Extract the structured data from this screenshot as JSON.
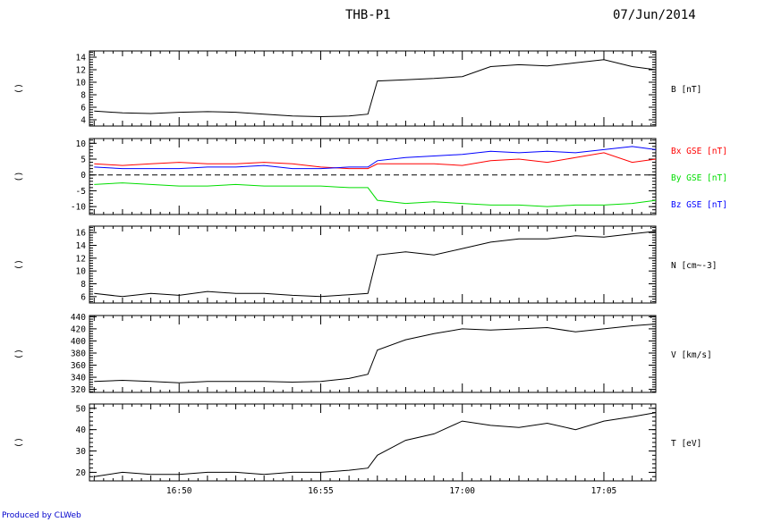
{
  "header": {
    "title": "THB-P1",
    "date": "07/Jun/2014"
  },
  "footer": {
    "credit": "Produced by CLWeb"
  },
  "chart_data": [
    {
      "type": "line",
      "panel_label": "()",
      "ylim": [
        3,
        15
      ],
      "yticks": [
        4,
        6,
        8,
        10,
        12,
        14
      ],
      "xlim": [
        "16:46:50",
        "17:06:50"
      ],
      "x_tick_labels": [
        "16:50",
        "16:55",
        "17:00",
        "17:05"
      ],
      "x": [
        "16:47",
        "16:48",
        "16:49",
        "16:50",
        "16:51",
        "16:52",
        "16:53",
        "16:54",
        "16:55",
        "16:56",
        "16:56:40",
        "16:57",
        "16:58",
        "16:59",
        "17:00",
        "17:01",
        "17:02",
        "17:03",
        "17:04",
        "17:05",
        "17:06",
        "17:06:50"
      ],
      "series": [
        {
          "name": "B [nT]",
          "color": "#000000",
          "values": [
            5.4,
            5.1,
            5.0,
            5.2,
            5.3,
            5.2,
            4.9,
            4.6,
            4.5,
            4.6,
            4.9,
            10.2,
            10.4,
            10.6,
            10.9,
            12.5,
            12.8,
            12.6,
            13.1,
            13.6,
            12.5,
            12.0
          ]
        }
      ]
    },
    {
      "type": "line",
      "panel_label": "()",
      "ylim": [
        -12.5,
        11.5
      ],
      "yticks": [
        -10,
        -5,
        0,
        5,
        10
      ],
      "zero_line": "dashed",
      "xlim": [
        "16:46:50",
        "17:06:50"
      ],
      "x_tick_labels": [
        "16:50",
        "16:55",
        "17:00",
        "17:05"
      ],
      "x": [
        "16:47",
        "16:48",
        "16:49",
        "16:50",
        "16:51",
        "16:52",
        "16:53",
        "16:54",
        "16:55",
        "16:56",
        "16:56:40",
        "16:57",
        "16:58",
        "16:59",
        "17:00",
        "17:01",
        "17:02",
        "17:03",
        "17:04",
        "17:05",
        "17:06",
        "17:06:50"
      ],
      "series": [
        {
          "name": "Bx GSE [nT]",
          "color": "#ff0000",
          "values": [
            3.5,
            3.0,
            3.5,
            4.0,
            3.5,
            3.5,
            4.0,
            3.5,
            2.5,
            2.0,
            2.0,
            3.5,
            3.5,
            3.5,
            3.0,
            4.5,
            5.0,
            4.0,
            5.5,
            7.0,
            4.0,
            5.0
          ]
        },
        {
          "name": "By GSE [nT]",
          "color": "#00dd00",
          "values": [
            -3.0,
            -2.5,
            -3.0,
            -3.5,
            -3.5,
            -3.0,
            -3.5,
            -3.5,
            -3.5,
            -4.0,
            -4.0,
            -8.0,
            -9.0,
            -8.5,
            -9.0,
            -9.5,
            -9.5,
            -10.0,
            -9.5,
            -9.5,
            -9.0,
            -8.0
          ]
        },
        {
          "name": "Bz GSE [nT]",
          "color": "#0000ff",
          "values": [
            2.5,
            2.0,
            2.0,
            2.0,
            2.5,
            2.5,
            3.0,
            2.0,
            2.0,
            2.5,
            2.5,
            4.5,
            5.5,
            6.0,
            6.5,
            7.5,
            7.0,
            7.5,
            7.0,
            8.0,
            9.0,
            8.0
          ]
        }
      ]
    },
    {
      "type": "line",
      "panel_label": "()",
      "ylim": [
        5,
        17
      ],
      "yticks": [
        6,
        8,
        10,
        12,
        14,
        16
      ],
      "xlim": [
        "16:46:50",
        "17:06:50"
      ],
      "x_tick_labels": [
        "16:50",
        "16:55",
        "17:00",
        "17:05"
      ],
      "x": [
        "16:47",
        "16:48",
        "16:49",
        "16:50",
        "16:51",
        "16:52",
        "16:53",
        "16:54",
        "16:55",
        "16:56",
        "16:56:40",
        "16:57",
        "16:58",
        "16:59",
        "17:00",
        "17:01",
        "17:02",
        "17:03",
        "17:04",
        "17:05",
        "17:06",
        "17:06:50"
      ],
      "series": [
        {
          "name": "N [cm^-3]",
          "label_text": "N [cm~-3]",
          "color": "#000000",
          "values": [
            6.5,
            6.0,
            6.5,
            6.2,
            6.8,
            6.5,
            6.5,
            6.2,
            6.0,
            6.3,
            6.5,
            12.5,
            13.0,
            12.5,
            13.5,
            14.5,
            15.0,
            15.0,
            15.5,
            15.3,
            15.8,
            16.2
          ]
        }
      ]
    },
    {
      "type": "line",
      "panel_label": "()",
      "ylim": [
        315,
        442
      ],
      "yticks": [
        320,
        340,
        360,
        380,
        400,
        420,
        440
      ],
      "xlim": [
        "16:46:50",
        "17:06:50"
      ],
      "x_tick_labels": [
        "16:50",
        "16:55",
        "17:00",
        "17:05"
      ],
      "x": [
        "16:47",
        "16:48",
        "16:49",
        "16:50",
        "16:51",
        "16:52",
        "16:53",
        "16:54",
        "16:55",
        "16:56",
        "16:56:40",
        "16:57",
        "16:58",
        "16:59",
        "17:00",
        "17:01",
        "17:02",
        "17:03",
        "17:04",
        "17:05",
        "17:06",
        "17:06:50"
      ],
      "series": [
        {
          "name": "V [km/s]",
          "color": "#000000",
          "values": [
            333,
            335,
            333,
            331,
            333,
            333,
            333,
            332,
            333,
            338,
            345,
            385,
            402,
            412,
            420,
            418,
            420,
            422,
            415,
            420,
            425,
            428
          ]
        }
      ]
    },
    {
      "type": "line",
      "panel_label": "()",
      "ylim": [
        16,
        52
      ],
      "yticks": [
        20,
        30,
        40,
        50
      ],
      "xlim": [
        "16:46:50",
        "17:06:50"
      ],
      "x_tick_labels": [
        "16:50",
        "16:55",
        "17:00",
        "17:05"
      ],
      "x": [
        "16:47",
        "16:48",
        "16:49",
        "16:50",
        "16:51",
        "16:52",
        "16:53",
        "16:54",
        "16:55",
        "16:56",
        "16:56:40",
        "16:57",
        "16:58",
        "16:59",
        "17:00",
        "17:01",
        "17:02",
        "17:03",
        "17:04",
        "17:05",
        "17:06",
        "17:06:50"
      ],
      "series": [
        {
          "name": "T [eV]",
          "color": "#000000",
          "values": [
            18,
            20,
            19,
            19,
            20,
            20,
            19,
            20,
            20,
            21,
            22,
            28,
            35,
            38,
            44,
            42,
            41,
            43,
            40,
            44,
            46,
            48
          ]
        }
      ]
    }
  ]
}
